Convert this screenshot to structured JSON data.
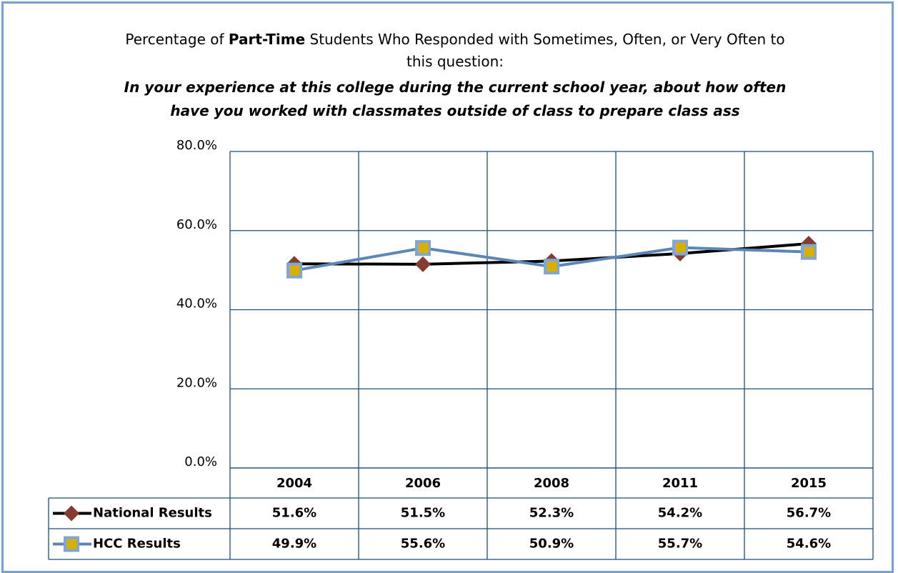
{
  "chart_data": {
    "type": "line",
    "title": {
      "prefix": "Percentage of",
      "emphasis": "Part-Time",
      "suffix": "Students Who Responded with Sometimes, Often, or Very Often to this question:"
    },
    "subtitle": "In your experience at this college during the current school year, about how often have you worked with classmates outside of class to prepare class ass",
    "categories": [
      "2004",
      "2006",
      "2008",
      "2011",
      "2015"
    ],
    "series": [
      {
        "name": "National Results",
        "color": "#000000",
        "marker_color": "#843c30",
        "marker": "diamond",
        "values": [
          51.6,
          51.5,
          52.3,
          54.2,
          56.7
        ],
        "value_labels": [
          "51.6%",
          "51.5%",
          "52.3%",
          "54.2%",
          "56.7%"
        ]
      },
      {
        "name": "HCC Results",
        "color": "#5b87b8",
        "marker_color": "#d9b000",
        "marker": "square",
        "values": [
          49.9,
          55.6,
          50.9,
          55.7,
          54.6
        ],
        "value_labels": [
          "49.9%",
          "55.6%",
          "50.9%",
          "55.7%",
          "54.6%"
        ]
      }
    ],
    "ylim": [
      0,
      80
    ],
    "yticks": [
      {
        "value": 0,
        "label": "0.0%"
      },
      {
        "value": 20,
        "label": "20.0%"
      },
      {
        "value": 40,
        "label": "40.0%"
      },
      {
        "value": 60,
        "label": "60.0%"
      },
      {
        "value": 80,
        "label": "80.0%"
      }
    ],
    "grid": true,
    "data_table": true
  }
}
